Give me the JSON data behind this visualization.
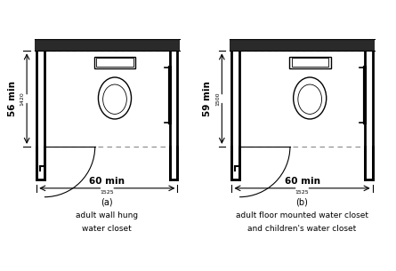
{
  "bg_color": "#ffffff",
  "line_color": "#000000",
  "wall_color": "#222222",
  "fig_a": {
    "label": "(a)",
    "caption_line1": "adult wall hung",
    "caption_line2": "water closet",
    "width_label": "60 min",
    "width_sub": "1525",
    "depth_label": "56 min",
    "depth_sub": "1420"
  },
  "fig_b": {
    "label": "(b)",
    "caption_line1": "adult floor mounted water closet",
    "caption_line2": "and children's water closet",
    "width_label": "60 min",
    "width_sub": "1525",
    "depth_label": "59 min",
    "depth_sub": "1500"
  }
}
